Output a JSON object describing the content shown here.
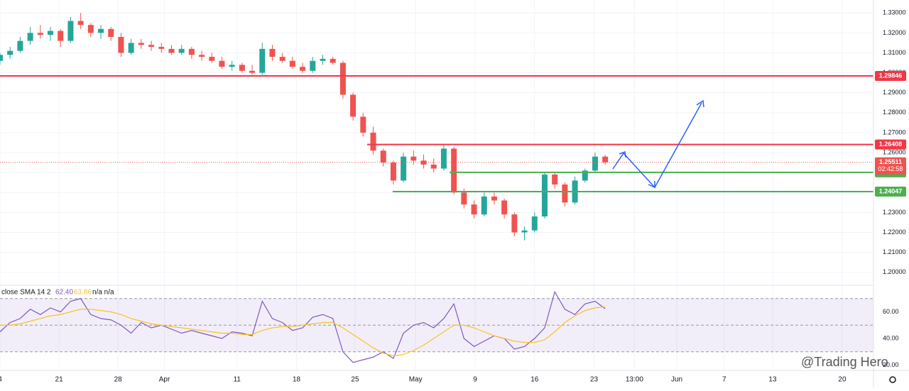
{
  "chart_data": {
    "type": "candlestick",
    "up_color": "#26a69a",
    "down_color": "#ef5350",
    "candles": [
      [
        1.306,
        1.31,
        1.304,
        1.309
      ],
      [
        1.309,
        1.313,
        1.307,
        1.311
      ],
      [
        1.311,
        1.318,
        1.31,
        1.316
      ],
      [
        1.316,
        1.323,
        1.314,
        1.32
      ],
      [
        1.32,
        1.324,
        1.317,
        1.319
      ],
      [
        1.319,
        1.323,
        1.316,
        1.321
      ],
      [
        1.321,
        1.322,
        1.313,
        1.316
      ],
      [
        1.316,
        1.328,
        1.315,
        1.326
      ],
      [
        1.326,
        1.33,
        1.322,
        1.324
      ],
      [
        1.324,
        1.325,
        1.318,
        1.32
      ],
      [
        1.32,
        1.324,
        1.317,
        1.322
      ],
      [
        1.322,
        1.323,
        1.316,
        1.318
      ],
      [
        1.318,
        1.32,
        1.308,
        1.31
      ],
      [
        1.31,
        1.317,
        1.309,
        1.315
      ],
      [
        1.315,
        1.317,
        1.312,
        1.314
      ],
      [
        1.314,
        1.316,
        1.311,
        1.313
      ],
      [
        1.313,
        1.315,
        1.31,
        1.312
      ],
      [
        1.312,
        1.314,
        1.309,
        1.31
      ],
      [
        1.31,
        1.314,
        1.309,
        1.312
      ],
      [
        1.312,
        1.313,
        1.307,
        1.309
      ],
      [
        1.309,
        1.311,
        1.306,
        1.308
      ],
      [
        1.308,
        1.31,
        1.305,
        1.306
      ],
      [
        1.306,
        1.308,
        1.302,
        1.303
      ],
      [
        1.303,
        1.306,
        1.301,
        1.304
      ],
      [
        1.304,
        1.305,
        1.3,
        1.301
      ],
      [
        1.301,
        1.304,
        1.299,
        1.3
      ],
      [
        1.3,
        1.315,
        1.299,
        1.312
      ],
      [
        1.312,
        1.314,
        1.306,
        1.308
      ],
      [
        1.308,
        1.31,
        1.305,
        1.306
      ],
      [
        1.306,
        1.308,
        1.302,
        1.303
      ],
      [
        1.303,
        1.305,
        1.3,
        1.301
      ],
      [
        1.301,
        1.308,
        1.3,
        1.306
      ],
      [
        1.306,
        1.309,
        1.304,
        1.307
      ],
      [
        1.307,
        1.308,
        1.304,
        1.305
      ],
      [
        1.305,
        1.306,
        1.287,
        1.289
      ],
      [
        1.289,
        1.29,
        1.276,
        1.278
      ],
      [
        1.278,
        1.28,
        1.268,
        1.27
      ],
      [
        1.27,
        1.273,
        1.259,
        1.261
      ],
      [
        1.261,
        1.262,
        1.253,
        1.255
      ],
      [
        1.255,
        1.256,
        1.244,
        1.246
      ],
      [
        1.246,
        1.26,
        1.245,
        1.258
      ],
      [
        1.258,
        1.261,
        1.254,
        1.256
      ],
      [
        1.256,
        1.259,
        1.252,
        1.254
      ],
      [
        1.254,
        1.257,
        1.25,
        1.252
      ],
      [
        1.252,
        1.264,
        1.251,
        1.262
      ],
      [
        1.262,
        1.263,
        1.239,
        1.24
      ],
      [
        1.24,
        1.242,
        1.232,
        1.234
      ],
      [
        1.234,
        1.236,
        1.227,
        1.229
      ],
      [
        1.229,
        1.24,
        1.228,
        1.238
      ],
      [
        1.238,
        1.24,
        1.234,
        1.236
      ],
      [
        1.236,
        1.237,
        1.227,
        1.229
      ],
      [
        1.229,
        1.23,
        1.218,
        1.22
      ],
      [
        1.22,
        1.223,
        1.216,
        1.221
      ],
      [
        1.221,
        1.23,
        1.22,
        1.228
      ],
      [
        1.228,
        1.25,
        1.227,
        1.249
      ],
      [
        1.249,
        1.25,
        1.242,
        1.244
      ],
      [
        1.244,
        1.245,
        1.233,
        1.235
      ],
      [
        1.235,
        1.248,
        1.234,
        1.246
      ],
      [
        1.246,
        1.252,
        1.245,
        1.251
      ],
      [
        1.251,
        1.26,
        1.25,
        1.258
      ],
      [
        1.258,
        1.259,
        1.254,
        1.25511
      ]
    ],
    "xlim": [
      0,
      86.6
    ],
    "xticks": [
      {
        "value": 0,
        "label": "4"
      },
      {
        "value": 5.85,
        "label": "21"
      },
      {
        "value": 11.7,
        "label": "28"
      },
      {
        "value": 16.3,
        "label": "Apr"
      },
      {
        "value": 23.5,
        "label": "11"
      },
      {
        "value": 29.4,
        "label": "18"
      },
      {
        "value": 35.2,
        "label": "25"
      },
      {
        "value": 41.2,
        "label": "May"
      },
      {
        "value": 47.1,
        "label": "9"
      },
      {
        "value": 53,
        "label": "16"
      },
      {
        "value": 58.9,
        "label": "23"
      },
      {
        "value": 62.9,
        "label": "13:00"
      },
      {
        "value": 67.1,
        "label": "Jun"
      },
      {
        "value": 71.8,
        "label": "7"
      },
      {
        "value": 76.6,
        "label": "13"
      },
      {
        "value": 83.5,
        "label": "20"
      }
    ],
    "ylim": [
      1.1935,
      1.3365
    ],
    "yticks": [
      {
        "value": 1.2,
        "label": "1.20000"
      },
      {
        "value": 1.21,
        "label": "1.21000"
      },
      {
        "value": 1.22,
        "label": "1.22000"
      },
      {
        "value": 1.23,
        "label": "1.23000"
      },
      {
        "value": 1.24,
        "label": "1.24000"
      },
      {
        "value": 1.25,
        "label": "1.25000"
      },
      {
        "value": 1.26,
        "label": "1.26000"
      },
      {
        "value": 1.27,
        "label": "1.27000"
      },
      {
        "value": 1.28,
        "label": "1.28000"
      },
      {
        "value": 1.29,
        "label": "1.29000"
      },
      {
        "value": 1.3,
        "label": "1.30000"
      },
      {
        "value": 1.31,
        "label": "1.31000"
      },
      {
        "value": 1.32,
        "label": "1.32000"
      },
      {
        "value": 1.33,
        "label": "1.33000"
      }
    ],
    "levels": [
      {
        "value": 1.29846,
        "color": "#f23645"
      },
      {
        "value": 1.26408,
        "color": "#f23645"
      },
      {
        "value": 1.25011,
        "color": "#4caf50"
      },
      {
        "value": 1.24047,
        "color": "#4caf50"
      }
    ],
    "last_price": 1.25511,
    "countdown": "02:42:58",
    "indicator": {
      "label": "close SMA 14 2",
      "extra": "n/a n/a",
      "ylim": [
        16,
        80
      ],
      "yticks": [
        {
          "value": 20,
          "label": "20.00"
        },
        {
          "value": 40,
          "label": "40.00"
        },
        {
          "value": 60,
          "label": "60.00"
        }
      ],
      "bands": [
        70,
        50,
        30
      ],
      "series": [
        {
          "color": "#7e57c2",
          "last_label": "62.40",
          "values": [
            45,
            52,
            55,
            62,
            58,
            63,
            60,
            68,
            70,
            58,
            55,
            54,
            50,
            44,
            52,
            48,
            50,
            47,
            44,
            46,
            44,
            42,
            40,
            45,
            44,
            42,
            68,
            55,
            52,
            46,
            48,
            56,
            58,
            55,
            30,
            22,
            24,
            26,
            30,
            25,
            44,
            50,
            52,
            48,
            55,
            66,
            40,
            34,
            38,
            42,
            40,
            32,
            34,
            40,
            48,
            75,
            62,
            58,
            66,
            68,
            62.4
          ]
        },
        {
          "color": "#f7c325",
          "last_label": "63.86",
          "values": [
            50,
            50,
            51,
            53,
            55,
            57,
            58,
            60,
            62,
            62,
            61,
            60,
            58,
            55,
            53,
            51,
            50,
            49,
            48,
            47,
            46,
            45,
            44,
            44,
            43,
            43,
            46,
            48,
            49,
            49,
            50,
            51,
            52,
            52,
            48,
            43,
            38,
            33,
            29,
            27,
            28,
            31,
            35,
            40,
            45,
            50,
            50,
            48,
            45,
            42,
            40,
            38,
            37,
            37,
            39,
            45,
            52,
            57,
            61,
            63,
            63.86
          ]
        }
      ]
    },
    "watermark": "@Trading Hero"
  }
}
